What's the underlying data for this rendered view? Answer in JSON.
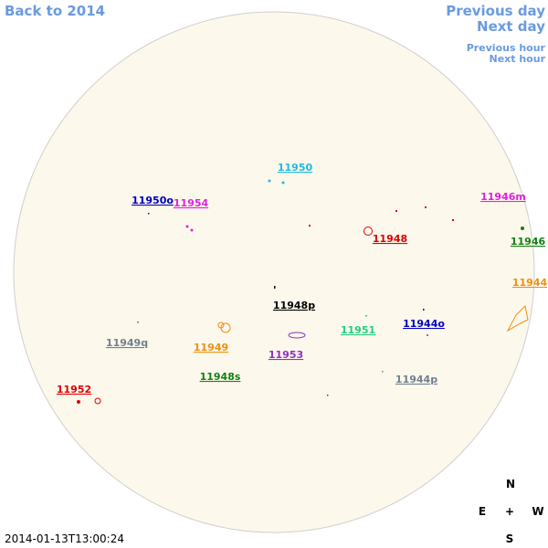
{
  "nav": {
    "back_year": "Back to 2014",
    "previous_day": "Previous day",
    "next_day": "Next day",
    "previous_hour": "Previous hour",
    "next_hour": "Next hour"
  },
  "regions": [
    {
      "label": "11950",
      "color": "#20b8e0"
    },
    {
      "label": "11950o",
      "color": "#0000c0"
    },
    {
      "label": "11954",
      "color": "#e020e0"
    },
    {
      "label": "11946m",
      "color": "#e020e0"
    },
    {
      "label": "11948",
      "color": "#e00000"
    },
    {
      "label": "11946",
      "color": "#108010"
    },
    {
      "label": "11944",
      "color": "#f09010"
    },
    {
      "label": "11948p",
      "color": "#000000"
    },
    {
      "label": "11951",
      "color": "#20d080"
    },
    {
      "label": "11944o",
      "color": "#0000c0"
    },
    {
      "label": "11949q",
      "color": "#708090"
    },
    {
      "label": "11949",
      "color": "#f09010"
    },
    {
      "label": "11953",
      "color": "#9030c0"
    },
    {
      "label": "11948s",
      "color": "#108010"
    },
    {
      "label": "11944p",
      "color": "#708090"
    },
    {
      "label": "11952",
      "color": "#e00000"
    }
  ],
  "compass": {
    "north": "N",
    "east": "E",
    "center": "+",
    "west": "W",
    "south": "S"
  },
  "timestamp": "2014-01-13T13:00:24"
}
